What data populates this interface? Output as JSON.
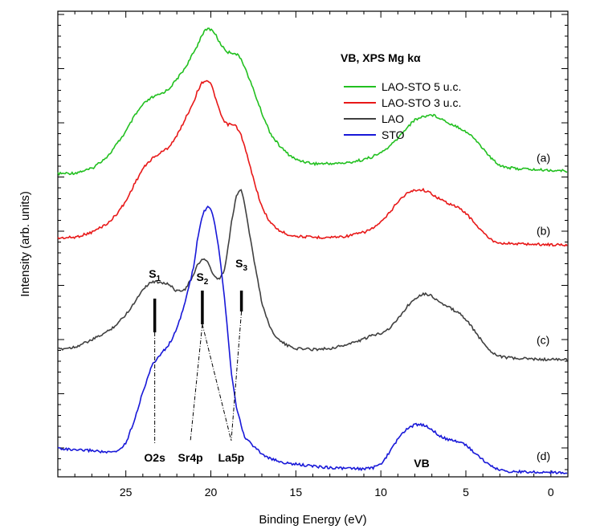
{
  "chart_data": {
    "type": "line",
    "title": "",
    "xlabel": "Binding Energy (eV)",
    "ylabel": "Intensity (arb. units)",
    "xlim": [
      29,
      -1
    ],
    "x_ticks": [
      25,
      20,
      15,
      10,
      5,
      0
    ],
    "x_tick_labels": [
      "25",
      "20",
      "15",
      "10",
      "5",
      "0"
    ],
    "y_ticklabels_shown": false,
    "legend_title": "VB, XPS Mg kα",
    "legend_position": "top-right",
    "series": [
      {
        "name": "LAO-STO 5 u.c.",
        "color": "#22c020",
        "label": "(a)",
        "x": [
          29,
          28,
          27,
          26,
          25.5,
          25,
          24.5,
          24,
          23.5,
          23,
          22.5,
          22,
          21.5,
          21,
          20.8,
          20.5,
          20.2,
          20,
          19.8,
          19.5,
          19.2,
          19,
          18.8,
          18.5,
          18.2,
          18,
          17.5,
          17,
          16.5,
          16,
          15.5,
          15,
          14,
          13,
          12,
          11,
          10.5,
          10,
          9.5,
          9,
          8.5,
          8,
          7.5,
          7,
          6.5,
          6,
          5.5,
          5,
          4.5,
          4,
          3.5,
          3,
          2.5,
          2,
          1.5,
          1,
          0,
          -1
        ],
        "y": [
          0.8,
          0.82,
          0.95,
          1.35,
          1.7,
          2.05,
          2.5,
          2.85,
          3.05,
          3.15,
          3.3,
          3.6,
          3.95,
          4.4,
          4.6,
          4.95,
          5.1,
          5.08,
          5.0,
          4.7,
          4.5,
          4.4,
          4.4,
          4.35,
          4.2,
          3.95,
          3.3,
          2.6,
          2.0,
          1.65,
          1.4,
          1.22,
          1.1,
          1.1,
          1.12,
          1.22,
          1.3,
          1.42,
          1.6,
          1.85,
          2.15,
          2.4,
          2.5,
          2.55,
          2.45,
          2.3,
          2.2,
          2.05,
          1.85,
          1.55,
          1.25,
          1.05,
          0.98,
          0.95,
          0.94,
          0.92,
          0.9,
          0.88
        ]
      },
      {
        "name": "LAO-STO 3 u.c.",
        "color": "#e81818",
        "label": "(b)",
        "x": [
          29,
          28,
          27,
          26,
          25.5,
          25,
          24.5,
          24,
          23.5,
          23,
          22.5,
          22,
          21.5,
          21,
          20.8,
          20.5,
          20.2,
          20,
          19.8,
          19.5,
          19.2,
          19,
          18.8,
          18.5,
          18.2,
          18,
          17.5,
          17,
          16.5,
          16,
          15.5,
          15,
          14,
          13,
          12,
          11,
          10.5,
          10,
          9.5,
          9,
          8.5,
          8,
          7.5,
          7,
          6.5,
          6,
          5.5,
          5,
          4.5,
          4,
          3.5,
          3,
          2.5,
          2,
          1.5,
          1,
          0,
          -1
        ],
        "y": [
          0.8,
          0.82,
          0.95,
          1.2,
          1.45,
          1.75,
          2.2,
          2.6,
          2.85,
          3.0,
          3.15,
          3.45,
          3.9,
          4.35,
          4.6,
          4.85,
          4.9,
          4.8,
          4.55,
          4.1,
          3.8,
          3.75,
          3.75,
          3.7,
          3.45,
          3.15,
          2.35,
          1.6,
          1.2,
          1.0,
          0.9,
          0.85,
          0.82,
          0.82,
          0.85,
          0.95,
          1.05,
          1.2,
          1.45,
          1.75,
          1.95,
          2.05,
          2.05,
          1.95,
          1.8,
          1.7,
          1.6,
          1.45,
          1.2,
          0.95,
          0.75,
          0.68,
          0.66,
          0.65,
          0.65,
          0.64,
          0.63,
          0.62
        ]
      },
      {
        "name": "LAO",
        "color": "#404040",
        "label": "(c)",
        "x": [
          29,
          28,
          27,
          26,
          25.5,
          25,
          24.5,
          24,
          23.5,
          23,
          22.5,
          22,
          21.5,
          21,
          20.8,
          20.5,
          20.2,
          20,
          19.8,
          19.5,
          19.2,
          19,
          18.8,
          18.5,
          18.2,
          18,
          17.5,
          17,
          16.5,
          16,
          15.5,
          15,
          14,
          13,
          12,
          11,
          10.5,
          10,
          9.5,
          9,
          8.5,
          8,
          7.5,
          7,
          6.5,
          6,
          5.5,
          5,
          4.5,
          4,
          3.5,
          3,
          2.5,
          2,
          1.5,
          1,
          0,
          -1
        ],
        "y": [
          0.6,
          0.65,
          0.8,
          1.0,
          1.15,
          1.35,
          1.6,
          1.9,
          2.05,
          2.05,
          2.0,
          1.85,
          1.9,
          2.2,
          2.4,
          2.55,
          2.5,
          2.3,
          2.15,
          2.1,
          2.3,
          2.75,
          3.3,
          3.9,
          4.05,
          3.7,
          2.6,
          1.6,
          1.05,
          0.8,
          0.68,
          0.62,
          0.6,
          0.62,
          0.7,
          0.82,
          0.9,
          0.95,
          1.05,
          1.25,
          1.5,
          1.7,
          1.8,
          1.75,
          1.6,
          1.5,
          1.4,
          1.25,
          1.0,
          0.75,
          0.55,
          0.45,
          0.42,
          0.4,
          0.4,
          0.39,
          0.38,
          0.38
        ]
      },
      {
        "name": "STO",
        "color": "#1818d8",
        "label": "(d)",
        "x": [
          29,
          28,
          27,
          26,
          25.5,
          25,
          24.5,
          24,
          23.5,
          23,
          22.5,
          22,
          21.5,
          21,
          20.8,
          20.5,
          20.2,
          20,
          19.8,
          19.5,
          19.2,
          19,
          18.8,
          18.5,
          18.2,
          18,
          17.5,
          17,
          16.5,
          16,
          15.5,
          15,
          14,
          13,
          12,
          11,
          10.5,
          10,
          9.5,
          9,
          8.5,
          8,
          7.5,
          7,
          6.5,
          6,
          5.5,
          5,
          4.5,
          4,
          3.5,
          3,
          2.5,
          2,
          1.5,
          1,
          0,
          -1
        ],
        "y": [
          0.55,
          0.5,
          0.5,
          0.45,
          0.48,
          0.65,
          1.15,
          1.75,
          2.3,
          2.55,
          2.75,
          3.1,
          3.7,
          4.45,
          5.0,
          5.55,
          5.75,
          5.7,
          5.45,
          4.75,
          3.8,
          3.0,
          2.2,
          1.45,
          1.0,
          0.78,
          0.6,
          0.42,
          0.32,
          0.26,
          0.22,
          0.2,
          0.16,
          0.13,
          0.11,
          0.1,
          0.12,
          0.2,
          0.45,
          0.75,
          0.95,
          1.05,
          1.05,
          0.95,
          0.8,
          0.72,
          0.7,
          0.62,
          0.45,
          0.3,
          0.15,
          0.08,
          0.05,
          0.04,
          0.04,
          0.03,
          0.03,
          0.02
        ]
      }
    ],
    "annotations": {
      "s1": {
        "main": "S",
        "sub": "1",
        "x": 23.3
      },
      "s2": {
        "main": "S",
        "sub": "2",
        "x": 20.5
      },
      "s3": {
        "main": "S",
        "sub": "3",
        "x": 18.2
      },
      "o2s": {
        "text": "O2s",
        "x": 23.3
      },
      "sr4p": {
        "text": "Sr4p",
        "x": 21.2
      },
      "la5p": {
        "text": "La5p",
        "x": 18.8
      },
      "vb": {
        "text": "VB",
        "x": 7.6
      }
    }
  }
}
